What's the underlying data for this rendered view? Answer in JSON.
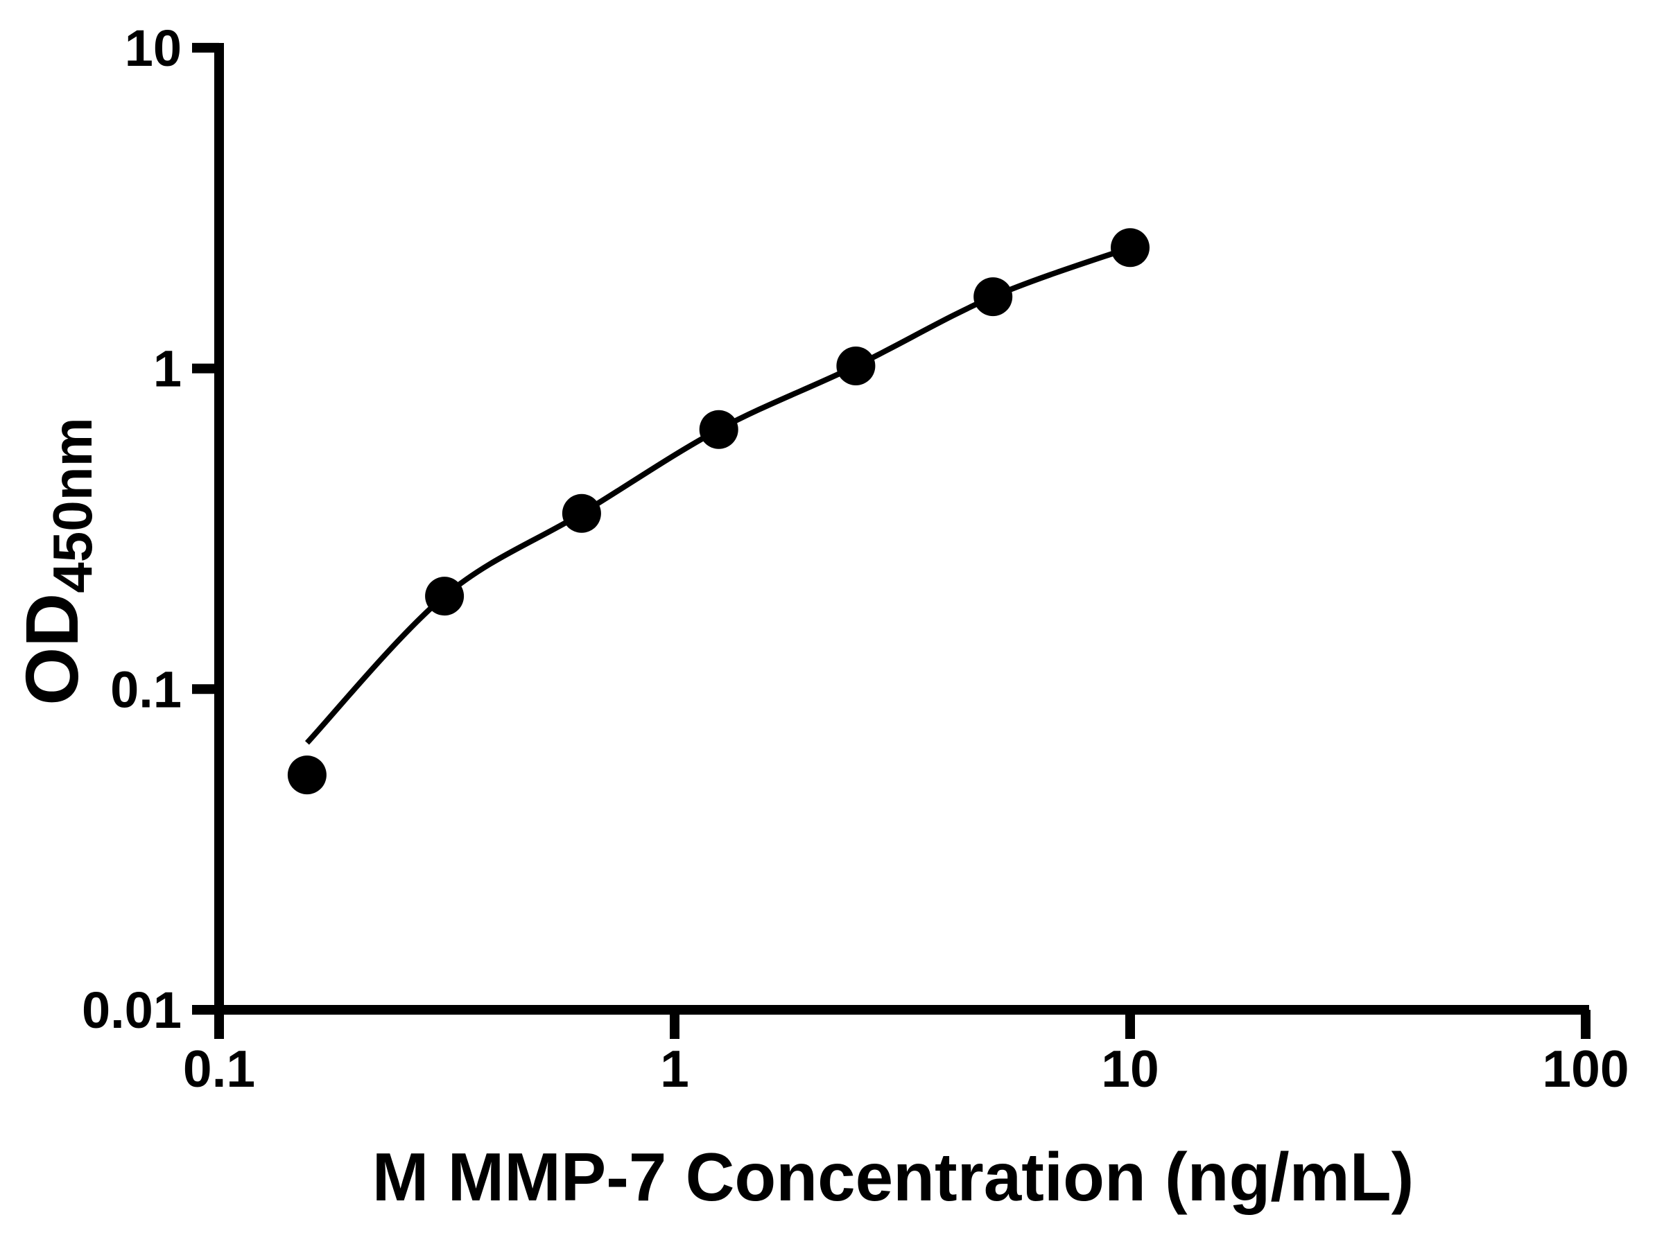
{
  "figure": {
    "background_color": "#ffffff",
    "ink_color": "#000000"
  },
  "chart_data": {
    "type": "scatter",
    "title": "",
    "xlabel": "M MMP-7 Concentration (ng/mL)",
    "ylabel": "OD450nm",
    "ylabel_main": "OD",
    "ylabel_sub": "450nm",
    "x_scale": "log",
    "y_scale": "log",
    "xlim": [
      0.1,
      100
    ],
    "ylim": [
      0.01,
      10
    ],
    "grid": false,
    "legend": false,
    "x_ticks": [
      {
        "value": 0.1,
        "label": "0.1"
      },
      {
        "value": 1,
        "label": "1"
      },
      {
        "value": 10,
        "label": "10"
      },
      {
        "value": 100,
        "label": "100"
      }
    ],
    "y_ticks": [
      {
        "value": 0.01,
        "label": "0.01"
      },
      {
        "value": 0.1,
        "label": "0.1"
      },
      {
        "value": 1,
        "label": "1"
      },
      {
        "value": 10,
        "label": "10"
      }
    ],
    "series": [
      {
        "name": "standard-points",
        "type": "scatter",
        "marker": "circle",
        "color": "#000000",
        "points": [
          [
            0.156,
            0.054
          ],
          [
            0.3125,
            0.195
          ],
          [
            0.625,
            0.353
          ],
          [
            1.25,
            0.645
          ],
          [
            2.5,
            1.018
          ],
          [
            5,
            1.674
          ],
          [
            10,
            2.381
          ]
        ]
      },
      {
        "name": "fit-curve",
        "type": "line",
        "color": "#000000",
        "points": [
          [
            0.156,
            0.068
          ],
          [
            0.3125,
            0.195
          ],
          [
            0.625,
            0.353
          ],
          [
            1.25,
            0.645
          ],
          [
            2.5,
            1.018
          ],
          [
            5,
            1.674
          ],
          [
            10,
            2.381
          ]
        ]
      }
    ]
  }
}
